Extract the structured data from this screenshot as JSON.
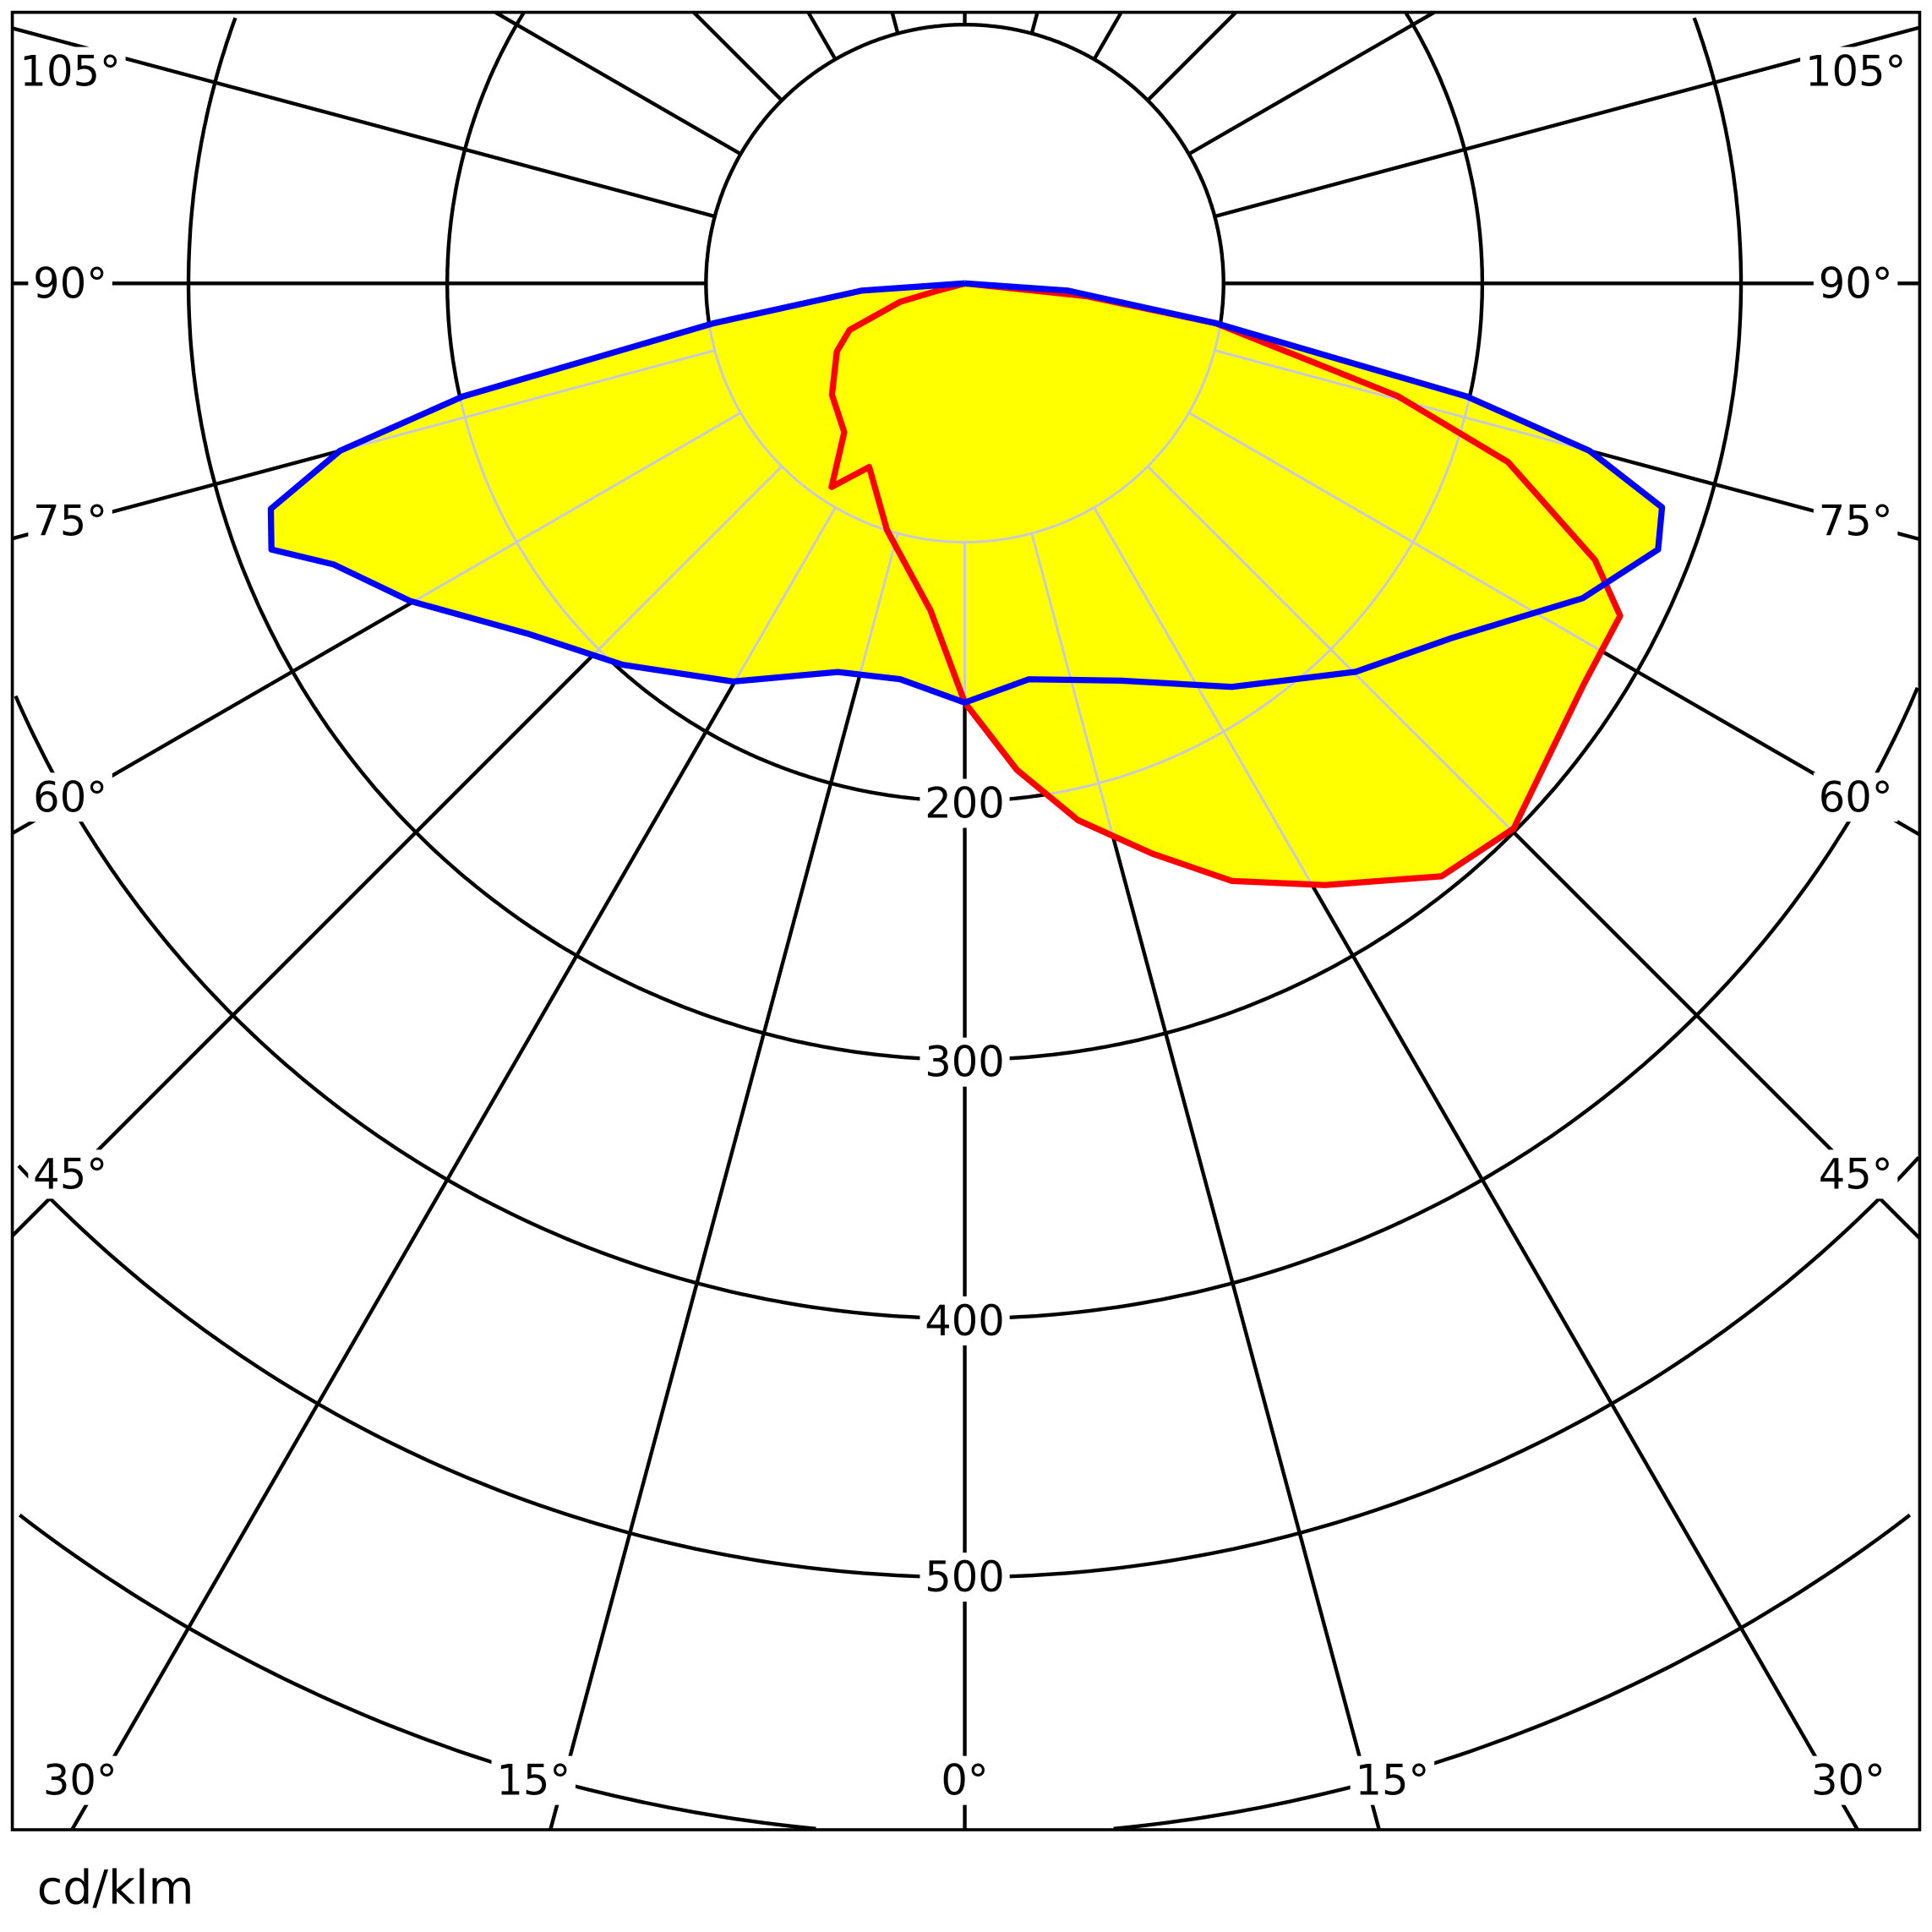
{
  "chart_data": {
    "type": "polar",
    "unit_label": "cd/klm",
    "radial_range": [
      0,
      700
    ],
    "radial_ticks": [
      100,
      200,
      300,
      400,
      500,
      600,
      700
    ],
    "radial_tick_labels": [
      "200",
      "300",
      "400",
      "500"
    ],
    "angle_labels": {
      "bottom": [
        "30°",
        "15°",
        "0°",
        "15°",
        "30°"
      ],
      "left": [
        "105°",
        "90°",
        "75°",
        "60°",
        "45°"
      ],
      "right": [
        "105°",
        "90°",
        "75°",
        "60°",
        "45°"
      ]
    },
    "fill_color": "#ffff00",
    "grid": true,
    "series": [
      {
        "color": "#0000ff",
        "points": [
          [
            -90,
            0
          ],
          [
            -86,
            40
          ],
          [
            -81,
            98
          ],
          [
            -77.3,
            199
          ],
          [
            -75,
            250
          ],
          [
            -72,
            282
          ],
          [
            -69,
            287
          ],
          [
            -66,
            267
          ],
          [
            -60.2,
            247
          ],
          [
            -51.1,
            216
          ],
          [
            -41.9,
            198
          ],
          [
            -30.2,
            178
          ],
          [
            -18.1,
            158
          ],
          [
            -9.3,
            155
          ],
          [
            0,
            162
          ],
          [
            9.2,
            155
          ],
          [
            21.5,
            165
          ],
          [
            33.5,
            187
          ],
          [
            45.2,
            213
          ],
          [
            54,
            233
          ],
          [
            63,
            268
          ],
          [
            69,
            287
          ],
          [
            72.2,
            283
          ],
          [
            75,
            250
          ],
          [
            77.3,
            199
          ],
          [
            81,
            98
          ],
          [
            86,
            40
          ],
          [
            90,
            0
          ]
        ]
      },
      {
        "color": "#ff0000",
        "points": [
          [
            -90,
            0
          ],
          [
            -75,
            11
          ],
          [
            -74,
            26
          ],
          [
            -68,
            48
          ],
          [
            -62,
            56
          ],
          [
            -50,
            67
          ],
          [
            -39,
            74
          ],
          [
            -33.2,
            94
          ],
          [
            -27.5,
            80
          ],
          [
            -17.5,
            100
          ],
          [
            -6,
            127
          ],
          [
            0,
            162
          ],
          [
            6.1,
            189
          ],
          [
            11.9,
            212
          ],
          [
            18.2,
            232
          ],
          [
            24.1,
            253
          ],
          [
            30.9,
            271
          ],
          [
            38.8,
            294
          ],
          [
            45.2,
            299
          ],
          [
            57.1,
            285
          ],
          [
            63.1,
            284
          ],
          [
            66.3,
            266
          ],
          [
            71.8,
            221
          ],
          [
            75.4,
            173
          ],
          [
            81,
            98
          ],
          [
            84,
            47
          ],
          [
            90,
            0
          ]
        ]
      }
    ]
  }
}
